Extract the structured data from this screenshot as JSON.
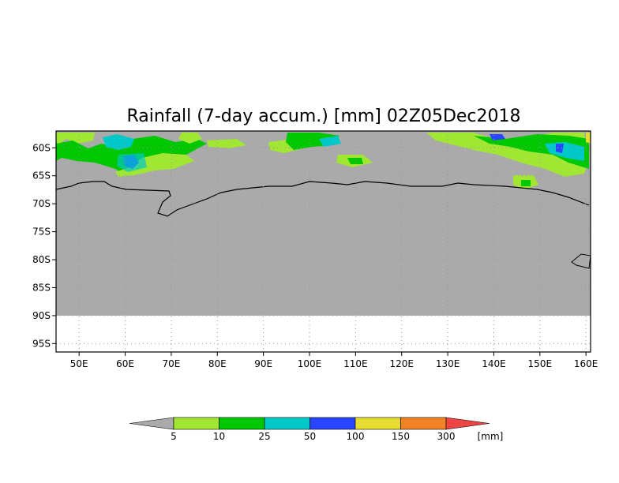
{
  "title": "Rainfall (7-day accum.) [mm] 02Z05Dec2018",
  "map": {
    "lon_range": [
      45,
      161
    ],
    "lat_range": [
      -96.5,
      -57
    ],
    "data_lat_limit": -90,
    "land_color": "#aaaaaa",
    "lat_ticks": [
      {
        "value": -60,
        "label": "60S"
      },
      {
        "value": -65,
        "label": "65S"
      },
      {
        "value": -70,
        "label": "70S"
      },
      {
        "value": -75,
        "label": "75S"
      },
      {
        "value": -80,
        "label": "80S"
      },
      {
        "value": -85,
        "label": "85S"
      },
      {
        "value": -90,
        "label": "90S"
      },
      {
        "value": -95,
        "label": "95S"
      }
    ],
    "lon_ticks": [
      {
        "value": 50,
        "label": "50E"
      },
      {
        "value": 60,
        "label": "60E"
      },
      {
        "value": 70,
        "label": "70E"
      },
      {
        "value": 80,
        "label": "80E"
      },
      {
        "value": 90,
        "label": "90E"
      },
      {
        "value": 100,
        "label": "100E"
      },
      {
        "value": 110,
        "label": "110E"
      },
      {
        "value": 120,
        "label": "120E"
      },
      {
        "value": 130,
        "label": "130E"
      },
      {
        "value": 140,
        "label": "140E"
      },
      {
        "value": 150,
        "label": "150E"
      },
      {
        "value": 160,
        "label": "160E"
      }
    ]
  },
  "legend": {
    "unit": "[mm]",
    "below_color": "#aaaaaa",
    "above_color": "#ee4444",
    "bins": [
      {
        "color": "#a0e632",
        "label": "5"
      },
      {
        "color": "#00c800",
        "label": "10"
      },
      {
        "color": "#00c8c8",
        "label": "25"
      },
      {
        "color": "#2846ff",
        "label": "50"
      },
      {
        "color": "#e6dc32",
        "label": "100"
      },
      {
        "color": "#f08228",
        "label": "150"
      }
    ],
    "last_label": "300"
  }
}
